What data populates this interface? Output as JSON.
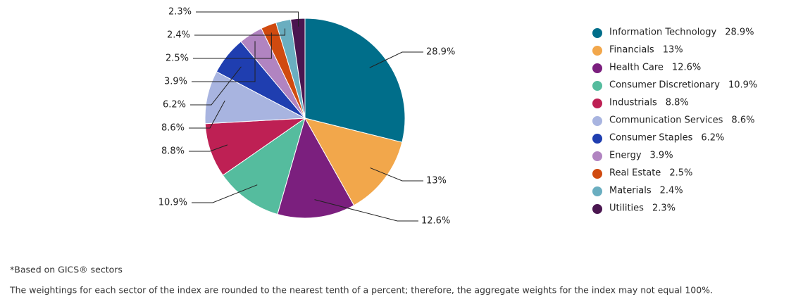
{
  "chart_data": {
    "type": "pie",
    "categories": [
      "Information Technology",
      "Financials",
      "Health Care",
      "Consumer Discretionary",
      "Industrials",
      "Communication Services",
      "Consumer Staples",
      "Energy",
      "Real Estate",
      "Materials",
      "Utilities"
    ],
    "values": [
      28.9,
      13,
      12.6,
      10.9,
      8.8,
      8.6,
      6.2,
      3.9,
      2.5,
      2.4,
      2.3
    ],
    "value_labels": [
      "28.9%",
      "13%",
      "12.6%",
      "10.9%",
      "8.8%",
      "8.6%",
      "6.2%",
      "3.9%",
      "2.5%",
      "2.4%",
      "2.3%"
    ],
    "colors": [
      "#006e8a",
      "#f2a74b",
      "#7b1f7e",
      "#55bc9e",
      "#be2054",
      "#a8b4e0",
      "#1f3eb0",
      "#b184c1",
      "#d04a0f",
      "#6aaec0",
      "#4a1650"
    ],
    "legend": "right",
    "footnotes": [
      "*Based on GICS® sectors",
      "The weightings for each sector of the index are rounded to the nearest tenth of a percent; therefore, the aggregate weights for the index may not equal 100%."
    ]
  }
}
